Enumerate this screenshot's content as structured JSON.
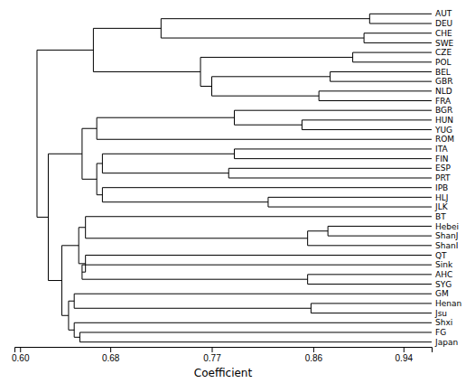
{
  "chart_data": {
    "type": "dendrogram",
    "xlabel": "Coefficient",
    "xlim": [
      0.595,
      0.965
    ],
    "xticks": [
      {
        "value": 0.6,
        "label": "0.60"
      },
      0.68,
      0.77,
      0.86,
      0.94
    ],
    "tick_labels": "x",
    "categories": [
      "AUT",
      "DEU",
      "CHE",
      "SWE",
      "CZE",
      "POL",
      "BEL",
      "GBR",
      "NLD",
      "FRA",
      "BGR",
      "HUN",
      "YUG",
      "ROM",
      "ITA",
      "FIN",
      "ESP",
      "PRT",
      "IPB",
      "HLJ",
      "JLK",
      "BT",
      "Hebei",
      "ShanJ",
      "ShanI",
      "QT",
      "Sink",
      "AHC",
      "SYG",
      "GM",
      "Henan",
      "Jsu",
      "Shxi",
      "FG",
      "Japan"
    ],
    "tree": {
      "value": 0.615,
      "children": [
        {
          "value": 0.665,
          "children": [
            {
              "value": 0.725,
              "children": [
                {
                  "value": 0.91,
                  "children": [
                    "AUT",
                    "DEU"
                  ]
                },
                {
                  "value": 0.905,
                  "children": [
                    "CHE",
                    "SWE"
                  ]
                }
              ]
            },
            {
              "value": 0.76,
              "children": [
                {
                  "value": 0.895,
                  "children": [
                    "CZE",
                    "POL"
                  ]
                },
                {
                  "value": 0.77,
                  "children": [
                    {
                      "value": 0.875,
                      "children": [
                        "BEL",
                        "GBR"
                      ]
                    },
                    {
                      "value": 0.865,
                      "children": [
                        "NLD",
                        "FRA"
                      ]
                    }
                  ]
                }
              ]
            }
          ]
        },
        {
          "value": 0.625,
          "children": [
            {
              "value": 0.655,
              "children": [
                {
                  "value": 0.668,
                  "children": [
                    {
                      "value": 0.79,
                      "children": [
                        "BGR",
                        {
                          "value": 0.85,
                          "children": [
                            "HUN",
                            "YUG"
                          ]
                        }
                      ]
                    },
                    "ROM"
                  ]
                },
                {
                  "value": 0.668,
                  "children": [
                    {
                      "value": 0.673,
                      "children": [
                        {
                          "value": 0.79,
                          "children": [
                            "ITA",
                            "FIN"
                          ]
                        },
                        {
                          "value": 0.785,
                          "children": [
                            "ESP",
                            "PRT"
                          ]
                        }
                      ]
                    },
                    {
                      "value": 0.673,
                      "children": [
                        "IPB",
                        {
                          "value": 0.82,
                          "children": [
                            "HLJ",
                            "JLK"
                          ]
                        }
                      ]
                    }
                  ]
                }
              ]
            },
            {
              "value": 0.637,
              "children": [
                {
                  "value": 0.652,
                  "children": [
                    {
                      "value": 0.658,
                      "children": [
                        "BT",
                        {
                          "value": 0.855,
                          "children": [
                            {
                              "value": 0.873,
                              "children": [
                                "Hebei",
                                "ShanJ"
                              ]
                            },
                            "ShanI"
                          ]
                        }
                      ]
                    },
                    {
                      "value": 0.658,
                      "children": [
                        "QT",
                        {
                          "value": 0.655,
                          "children": [
                            "Sink",
                            {
                              "value": 0.855,
                              "children": [
                                "AHC",
                                "SYG"
                              ]
                            }
                          ]
                        }
                      ]
                    }
                  ]
                },
                {
                  "value": 0.643,
                  "children": [
                    {
                      "value": 0.648,
                      "children": [
                        "GM",
                        {
                          "value": 0.858,
                          "children": [
                            "Henan",
                            "Jsu"
                          ]
                        }
                      ]
                    },
                    {
                      "value": 0.648,
                      "children": [
                        "Shxi",
                        {
                          "value": 0.653,
                          "children": [
                            "FG",
                            "Japan"
                          ]
                        }
                      ]
                    }
                  ]
                }
              ]
            }
          ]
        }
      ]
    }
  }
}
